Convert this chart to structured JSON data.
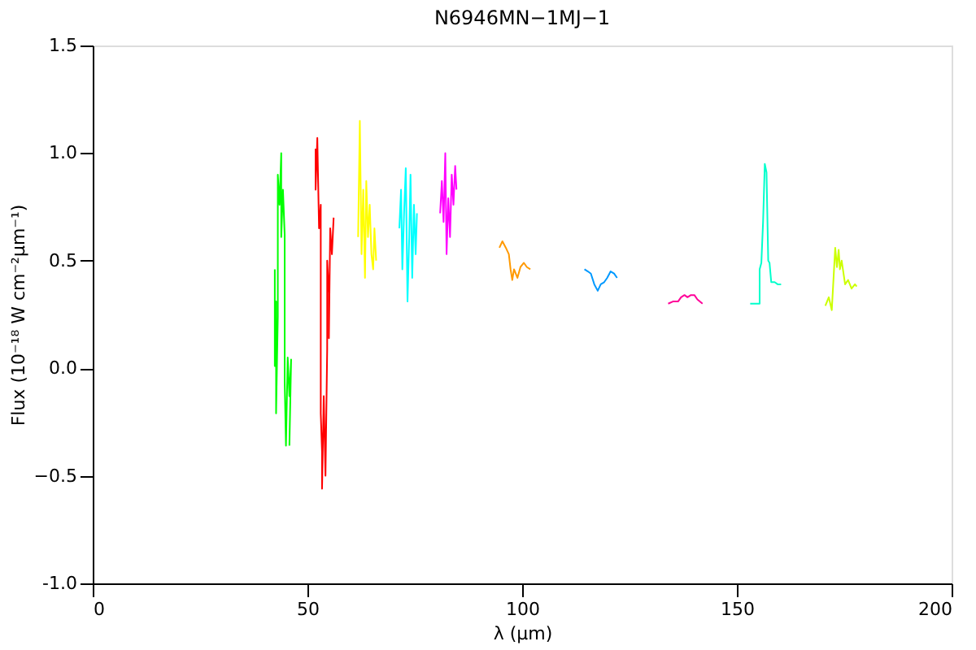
{
  "chart_data": {
    "type": "line",
    "title": "N6946MN−1MJ−1",
    "xlabel": "λ (μm)",
    "ylabel": "Flux (10⁻¹⁸ W cm⁻²μm⁻¹)",
    "xlim": [
      0,
      200
    ],
    "xticks": [
      0,
      50,
      100,
      150,
      200
    ],
    "ylim": [
      -1.0,
      1.5
    ],
    "yticks": [
      {
        "value": -1.0,
        "label": "-1.0"
      },
      -0.5,
      {
        "value": 0.0,
        "label": "0.0"
      },
      0.5,
      {
        "value": 1.0,
        "label": "1.0"
      },
      1.5
    ],
    "grid": false,
    "marker": "none",
    "line_style": "solid",
    "series": [
      {
        "color": "#00ff00",
        "x": [
          42.4,
          42.4,
          42.7,
          42.7,
          43.1,
          43.1,
          43.5,
          43.9,
          43.9,
          44.3,
          44.7,
          44.7,
          45.0,
          45.4,
          45.8,
          46.2,
          45.8
        ],
        "values": [
          0.46,
          0.01,
          0.31,
          -0.21,
          0.24,
          0.9,
          0.76,
          1.0,
          0.61,
          0.83,
          0.62,
          -0.06,
          -0.36,
          0.05,
          -0.13,
          0.04,
          -0.36
        ]
      },
      {
        "color": "#ff0000",
        "x": [
          51.9,
          51.9,
          52.3,
          52.7,
          53.1,
          53.1,
          53.4,
          53.4,
          53.8,
          54.2,
          54.6,
          54.6,
          55.0,
          55.0,
          55.3,
          55.7,
          56.1
        ],
        "values": [
          1.02,
          0.83,
          1.07,
          0.65,
          0.76,
          -0.21,
          -0.39,
          -0.56,
          -0.13,
          -0.5,
          0.09,
          0.5,
          0.35,
          0.14,
          0.65,
          0.53,
          0.7
        ]
      },
      {
        "color": "#ffff00",
        "x": [
          61.8,
          62.2,
          62.6,
          63.0,
          63.4,
          63.7,
          64.1,
          64.5,
          64.9,
          65.3,
          65.6,
          66.0
        ],
        "values": [
          0.61,
          1.15,
          0.53,
          0.83,
          0.42,
          0.87,
          0.61,
          0.76,
          0.53,
          0.46,
          0.65,
          0.5
        ]
      },
      {
        "color": "#00ffff",
        "x": [
          71.4,
          71.8,
          72.1,
          72.5,
          72.9,
          73.3,
          73.7,
          74.0,
          74.4,
          74.8,
          75.2,
          75.5
        ],
        "values": [
          0.65,
          0.83,
          0.46,
          0.72,
          0.93,
          0.31,
          0.61,
          0.9,
          0.42,
          0.76,
          0.53,
          0.72
        ]
      },
      {
        "color": "#ff00ff",
        "x": [
          80.9,
          81.3,
          81.7,
          82.1,
          82.4,
          82.8,
          83.2,
          83.6,
          84.0,
          84.4,
          84.7
        ],
        "values": [
          0.72,
          0.87,
          0.68,
          1.0,
          0.53,
          0.79,
          0.61,
          0.9,
          0.76,
          0.94,
          0.83
        ]
      },
      {
        "color": "#ff9900",
        "x": [
          94.7,
          95.4,
          96.2,
          96.9,
          97.3,
          97.7,
          98.1,
          98.9,
          99.6,
          100.4,
          101.1,
          101.9
        ],
        "values": [
          0.56,
          0.59,
          0.56,
          0.53,
          0.46,
          0.41,
          0.46,
          0.42,
          0.47,
          0.49,
          0.47,
          0.46
        ]
      },
      {
        "color": "#0099ff",
        "x": [
          114.5,
          115.3,
          116.0,
          116.8,
          117.6,
          118.3,
          119.1,
          119.8,
          120.6,
          121.4,
          122.1
        ],
        "values": [
          0.46,
          0.45,
          0.44,
          0.39,
          0.36,
          0.39,
          0.4,
          0.42,
          0.45,
          0.44,
          0.42
        ]
      },
      {
        "color": "#ff0099",
        "x": [
          134.0,
          135.1,
          136.3,
          137.0,
          137.8,
          138.5,
          139.3,
          140.1,
          140.8,
          142.0
        ],
        "values": [
          0.3,
          0.31,
          0.31,
          0.33,
          0.34,
          0.33,
          0.34,
          0.34,
          0.32,
          0.3
        ]
      },
      {
        "color": "#00ffcc",
        "x": [
          153.1,
          154.2,
          155.3,
          155.3,
          155.7,
          156.1,
          156.5,
          156.9,
          157.3,
          157.6,
          158.0,
          158.8,
          159.5,
          160.3
        ],
        "values": [
          0.3,
          0.3,
          0.3,
          0.46,
          0.49,
          0.68,
          0.95,
          0.91,
          0.5,
          0.49,
          0.4,
          0.4,
          0.39,
          0.39
        ]
      },
      {
        "color": "#ccff00",
        "x": [
          170.6,
          171.4,
          172.1,
          172.9,
          173.3,
          173.7,
          174.0,
          174.4,
          175.2,
          175.9,
          176.7,
          177.5,
          177.9
        ],
        "values": [
          0.29,
          0.33,
          0.27,
          0.56,
          0.47,
          0.55,
          0.46,
          0.5,
          0.39,
          0.41,
          0.37,
          0.39,
          0.38
        ]
      }
    ]
  }
}
